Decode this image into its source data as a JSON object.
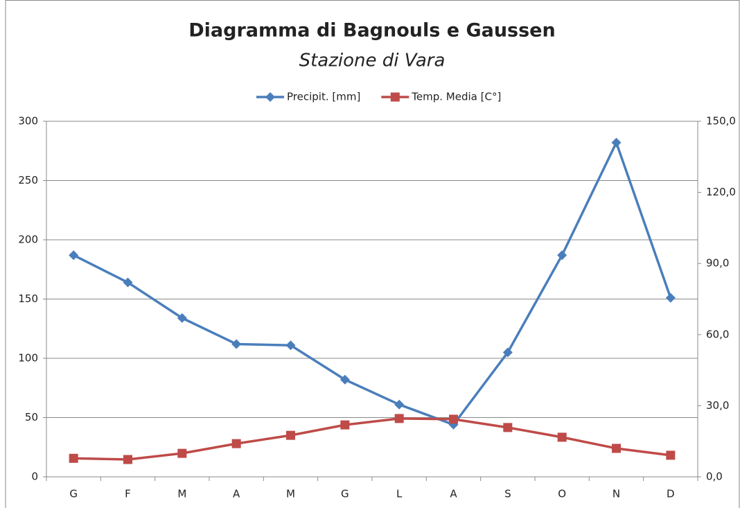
{
  "chart_data": {
    "type": "line",
    "title": "Diagramma di Bagnouls e Gaussen",
    "subtitle": "Stazione di Vara",
    "categories": [
      "G",
      "F",
      "M",
      "A",
      "M",
      "G",
      "L",
      "A",
      "S",
      "O",
      "N",
      "D"
    ],
    "series": [
      {
        "name": "Precipit. [mm]",
        "color": "#4a7ebb",
        "marker": "diamond",
        "values": [
          187,
          164,
          134,
          112,
          111,
          82,
          61,
          44,
          105,
          187,
          282,
          151
        ]
      },
      {
        "name": "Temp. Media [C°]",
        "color": "#be4b48",
        "marker": "square",
        "axis": "y2",
        "values": [
          7.8,
          7.3,
          9.9,
          14.0,
          17.5,
          21.9,
          24.6,
          24.3,
          20.8,
          16.7,
          12.0,
          9.1
        ]
      }
    ],
    "ylim": [
      0,
      300
    ],
    "yticks": [
      0,
      50,
      100,
      150,
      200,
      250,
      300
    ],
    "y2lim": [
      0,
      150
    ],
    "y2ticks": [
      {
        "value": 0,
        "label": "0,0"
      },
      {
        "value": 30,
        "label": "30,0"
      },
      {
        "value": 60,
        "label": "60,0"
      },
      {
        "value": 90,
        "label": "90,0"
      },
      {
        "value": 120,
        "label": "120,0"
      },
      {
        "value": 150,
        "label": "150,0"
      }
    ],
    "grid": true,
    "legend": "top"
  }
}
